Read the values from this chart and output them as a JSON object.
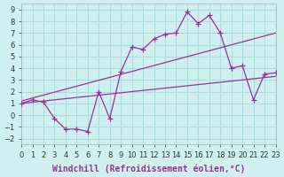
{
  "background_color": "#cff0ee",
  "grid_color": "#aadddd",
  "line_color": "#993399",
  "xlim": [
    0,
    23
  ],
  "ylim": [
    -2.5,
    9.5
  ],
  "xlabel": "Windchill (Refroidissement éolien,°C)",
  "xlabel_fontsize": 7,
  "tick_fontsize": 6,
  "xticks": [
    0,
    1,
    2,
    3,
    4,
    5,
    6,
    7,
    8,
    9,
    10,
    11,
    12,
    13,
    14,
    15,
    16,
    17,
    18,
    19,
    20,
    21,
    22,
    23
  ],
  "yticks": [
    -2,
    -1,
    0,
    1,
    2,
    3,
    4,
    5,
    6,
    7,
    8,
    9
  ],
  "line1_x": [
    0,
    1,
    2,
    3,
    4,
    5,
    6,
    7,
    8,
    9,
    10,
    11,
    12,
    13,
    14,
    15,
    16,
    17,
    18,
    19,
    20,
    21,
    22,
    23
  ],
  "line1_y": [
    1.0,
    1.3,
    1.1,
    -0.3,
    -1.2,
    -1.2,
    -1.4,
    2.0,
    -0.3,
    3.7,
    5.8,
    5.6,
    6.5,
    6.9,
    7.0,
    8.8,
    7.8,
    8.5,
    7.0,
    4.0,
    4.2,
    1.3,
    3.5,
    3.6
  ],
  "line2_x": [
    0,
    23
  ],
  "line2_y": [
    1.0,
    3.3
  ],
  "line3_x": [
    0,
    23
  ],
  "line3_y": [
    1.2,
    7.0
  ]
}
